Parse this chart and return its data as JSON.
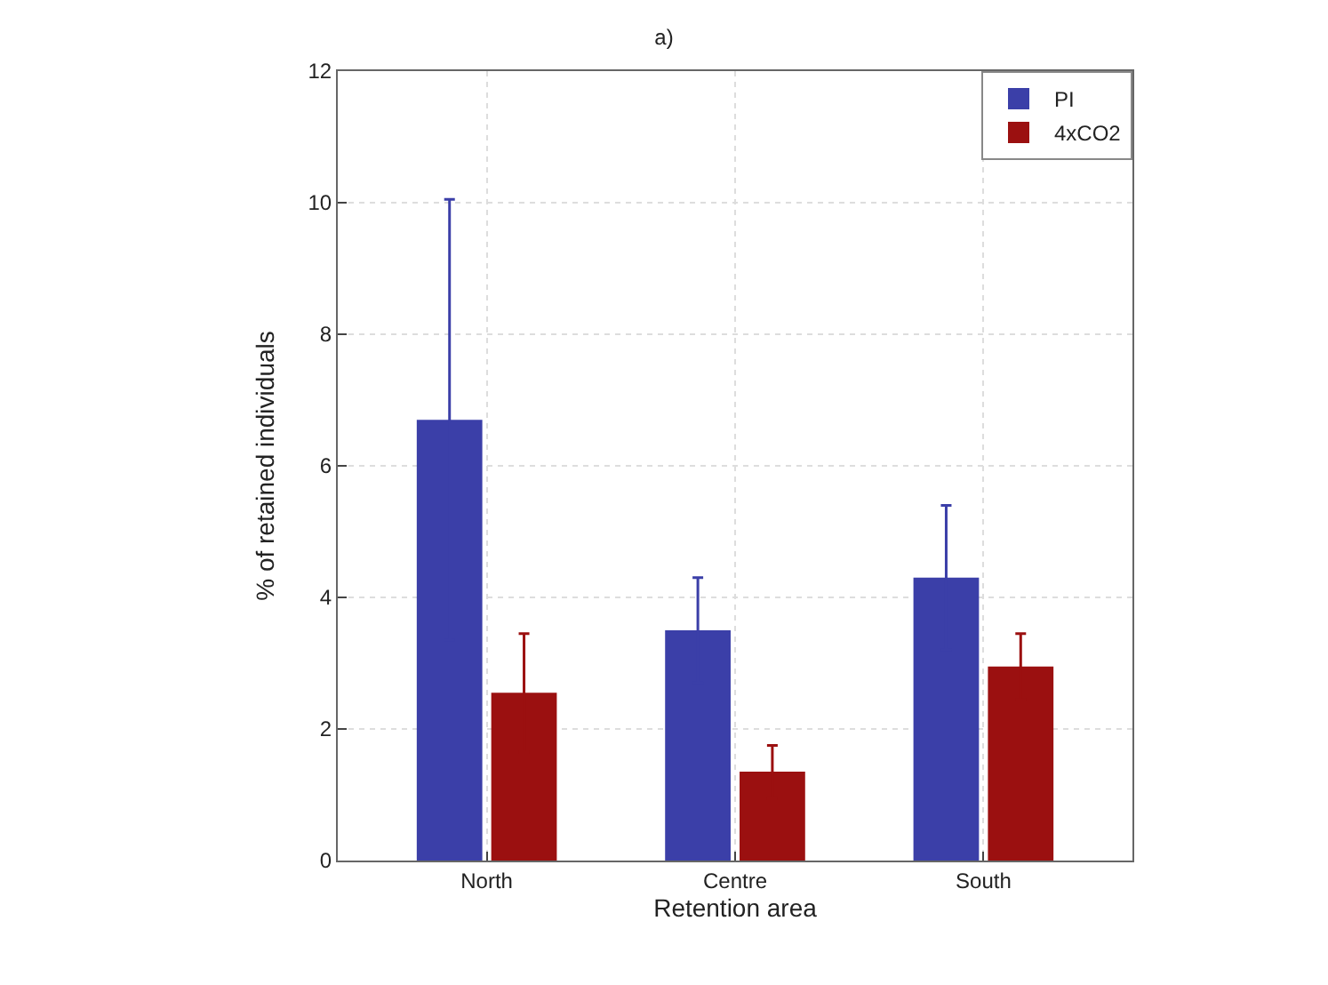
{
  "chart_data": {
    "type": "bar",
    "title": "a)",
    "xlabel": "Retention area",
    "ylabel": "% of retained individuals",
    "categories": [
      "North",
      "Centre",
      "South"
    ],
    "series": [
      {
        "name": "PI",
        "color": "#3b3fa8",
        "values": [
          6.7,
          3.5,
          4.3
        ],
        "errors": [
          3.35,
          0.8,
          1.1
        ]
      },
      {
        "name": "4xCO2",
        "color": "#9b1010",
        "values": [
          2.55,
          1.35,
          2.95
        ],
        "errors": [
          0.9,
          0.4,
          0.5
        ]
      }
    ],
    "ylim": [
      0,
      12
    ],
    "yticks": [
      0,
      2,
      4,
      6,
      8,
      10,
      12
    ],
    "grid": true,
    "legend": "top right"
  }
}
